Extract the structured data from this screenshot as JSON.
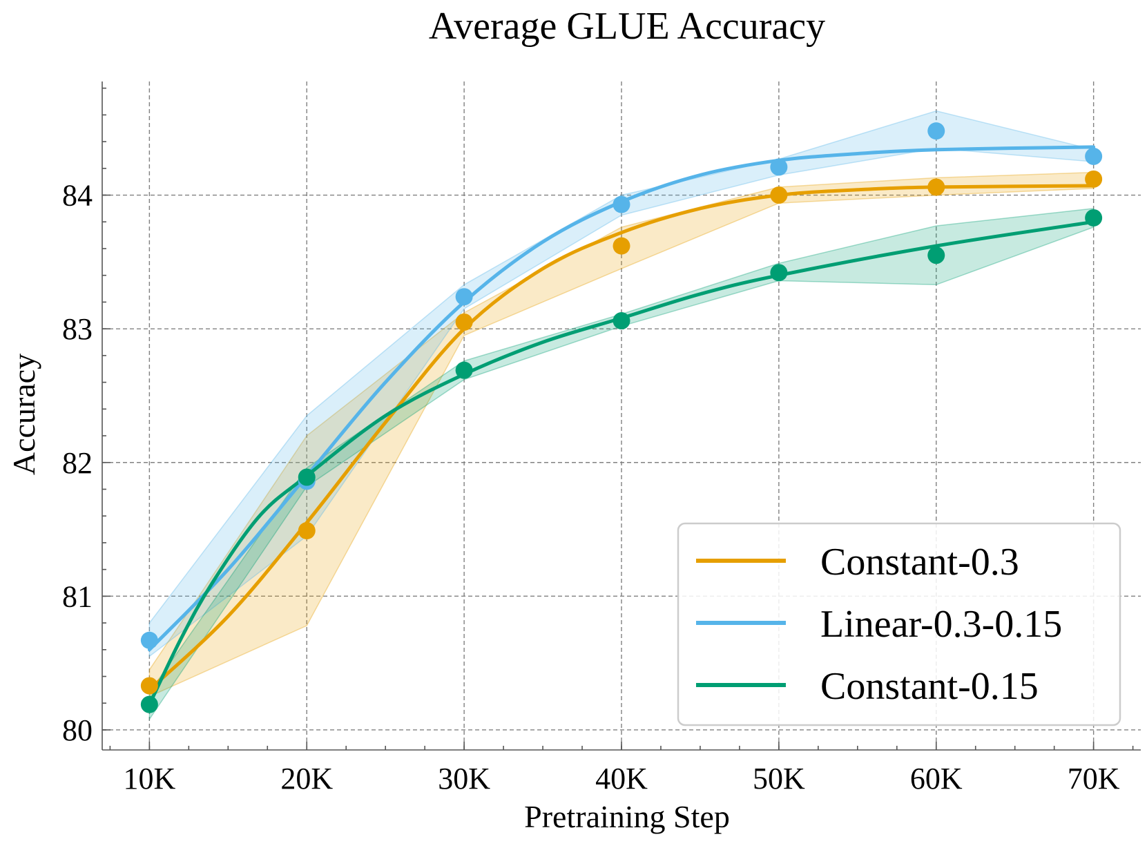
{
  "chart_data": {
    "type": "line",
    "title": "Average GLUE Accuracy",
    "xlabel": "Pretraining Step",
    "ylabel": "Accuracy",
    "xlim": [
      7000,
      73000
    ],
    "ylim": [
      79.85,
      84.85
    ],
    "x_ticks": [
      {
        "value": 10000,
        "label": "10K"
      },
      {
        "value": 20000,
        "label": "20K"
      },
      {
        "value": 30000,
        "label": "30K"
      },
      {
        "value": 40000,
        "label": "40K"
      },
      {
        "value": 50000,
        "label": "50K"
      },
      {
        "value": 60000,
        "label": "60K"
      },
      {
        "value": 70000,
        "label": "70K"
      }
    ],
    "y_ticks": [
      {
        "value": 80,
        "label": "80"
      },
      {
        "value": 81,
        "label": "81"
      },
      {
        "value": 82,
        "label": "82"
      },
      {
        "value": 83,
        "label": "83"
      },
      {
        "value": 84,
        "label": "84"
      }
    ],
    "grid": true,
    "legend_position": "bottom-right",
    "x": [
      10000,
      20000,
      30000,
      40000,
      50000,
      60000,
      70000
    ],
    "series": [
      {
        "name": "Constant-0.3",
        "color": "#E69F00",
        "values": [
          80.33,
          81.49,
          83.05,
          83.62,
          84.0,
          84.06,
          84.12
        ],
        "band_low": [
          80.25,
          80.78,
          82.95,
          83.45,
          83.94,
          84.0,
          84.05
        ],
        "band_high": [
          80.45,
          82.2,
          83.12,
          83.76,
          84.06,
          84.13,
          84.17
        ],
        "fit": [
          [
            10000,
            80.3
          ],
          [
            15000,
            80.85
          ],
          [
            20000,
            81.55
          ],
          [
            25000,
            82.3
          ],
          [
            30000,
            83.0
          ],
          [
            35000,
            83.45
          ],
          [
            40000,
            83.72
          ],
          [
            45000,
            83.9
          ],
          [
            50000,
            84.0
          ],
          [
            55000,
            84.04
          ],
          [
            60000,
            84.06
          ],
          [
            70000,
            84.07
          ]
        ]
      },
      {
        "name": "Linear-0.3-0.15",
        "color": "#56B4E9",
        "values": [
          80.67,
          81.86,
          83.24,
          83.93,
          84.21,
          84.48,
          84.29
        ],
        "band_low": [
          80.55,
          81.45,
          83.15,
          83.85,
          84.15,
          84.35,
          84.25
        ],
        "band_high": [
          80.8,
          82.35,
          83.33,
          84.0,
          84.27,
          84.63,
          84.34
        ],
        "fit": [
          [
            10000,
            80.6
          ],
          [
            15000,
            81.2
          ],
          [
            20000,
            81.9
          ],
          [
            25000,
            82.6
          ],
          [
            30000,
            83.2
          ],
          [
            35000,
            83.65
          ],
          [
            40000,
            83.95
          ],
          [
            45000,
            84.15
          ],
          [
            50000,
            84.26
          ],
          [
            55000,
            84.31
          ],
          [
            60000,
            84.34
          ],
          [
            70000,
            84.36
          ]
        ]
      },
      {
        "name": "Constant-0.15",
        "color": "#009E73",
        "values": [
          80.19,
          81.89,
          82.69,
          83.06,
          83.42,
          83.55,
          83.83
        ],
        "band_low": [
          80.08,
          81.82,
          82.62,
          83.02,
          83.36,
          83.33,
          83.76
        ],
        "band_high": [
          80.28,
          81.96,
          82.76,
          83.11,
          83.49,
          83.77,
          83.9
        ],
        "fit": [
          [
            10000,
            80.19
          ],
          [
            12000,
            80.68
          ],
          [
            14000,
            81.1
          ],
          [
            17000,
            81.6
          ],
          [
            20000,
            81.9
          ],
          [
            25000,
            82.35
          ],
          [
            30000,
            82.66
          ],
          [
            35000,
            82.9
          ],
          [
            40000,
            83.08
          ],
          [
            45000,
            83.26
          ],
          [
            50000,
            83.4
          ],
          [
            60000,
            83.62
          ],
          [
            70000,
            83.8
          ]
        ]
      }
    ]
  }
}
